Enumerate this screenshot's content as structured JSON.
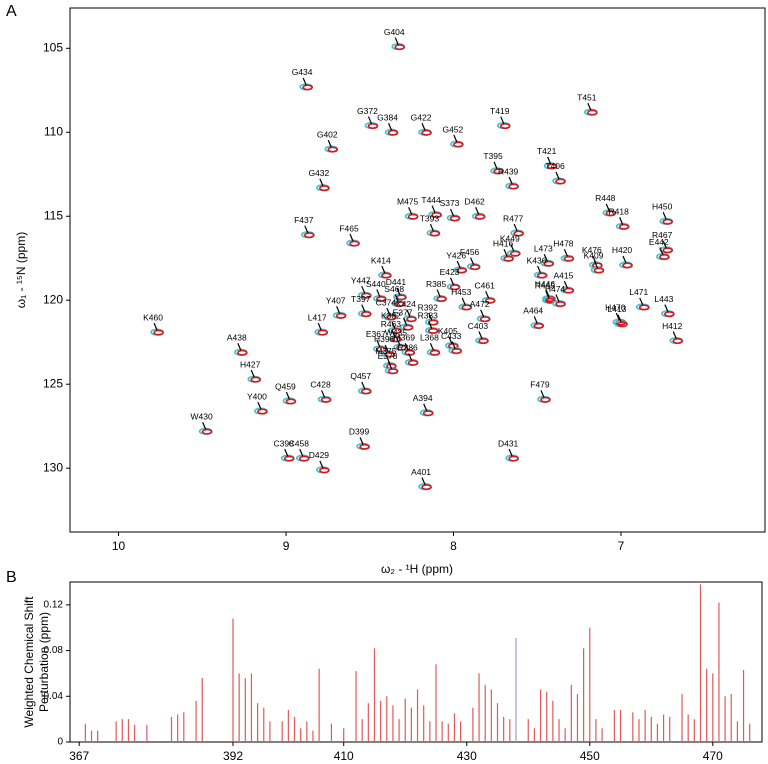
{
  "chart_data": [
    {
      "type": "scatter",
      "panel": "A",
      "xlabel": "ω₂ - ¹H  (ppm)",
      "ylabel": "ω₁ - ¹⁵N  (ppm)",
      "xlim": [
        10.29,
        6.14
      ],
      "ylim": [
        133.8,
        102.6
      ],
      "xticks": [
        10,
        9,
        8,
        7
      ],
      "yticks": [
        105,
        110,
        115,
        120,
        125,
        130
      ],
      "colors": [
        "#3fc0d0",
        "#d8161b"
      ],
      "labels": [
        "G404",
        "G434",
        "G372",
        "G384",
        "G422",
        "G452",
        "T419",
        "T451",
        "G402",
        "T395",
        "T421",
        "R439",
        "T406",
        "G432",
        "M475",
        "T444",
        "S373",
        "D462",
        "R448",
        "R418",
        "H450",
        "F437",
        "F465",
        "T393",
        "R477",
        "K449",
        "L473",
        "H478",
        "R467",
        "F456",
        "H416",
        "K414",
        "Y426",
        "H420",
        "E442",
        "K476",
        "K409",
        "K436",
        "Y447",
        "S440",
        "D441",
        "S468",
        "E423",
        "C461",
        "H453",
        "R385",
        "H446",
        "A415",
        "R445",
        "H474",
        "Y407",
        "T397",
        "C374",
        "K424",
        "E377",
        "K382",
        "R392",
        "R383",
        "A472",
        "H470",
        "L471",
        "L443",
        "L417",
        "R463",
        "W435",
        "L413",
        "H412",
        "A464",
        "C403",
        "K460",
        "A438",
        "E367",
        "H396",
        "M369",
        "K405",
        "L368",
        "R386",
        "C433",
        "M375",
        "E378",
        "H427",
        "C428",
        "Q457",
        "F479",
        "Y400",
        "Q459",
        "A394",
        "W430",
        "D399",
        "C398",
        "C458",
        "D429",
        "D431",
        "A401"
      ],
      "x": [
        8.33,
        8.88,
        8.49,
        8.37,
        8.17,
        7.98,
        7.7,
        7.18,
        8.73,
        7.74,
        7.42,
        7.65,
        7.37,
        8.78,
        8.25,
        8.11,
        8.0,
        7.85,
        7.07,
        6.99,
        6.73,
        8.87,
        8.6,
        8.12,
        7.62,
        7.64,
        7.44,
        7.32,
        6.73,
        7.88,
        7.68,
        8.41,
        7.96,
        6.97,
        6.75,
        7.15,
        7.14,
        7.48,
        8.53,
        8.44,
        8.32,
        8.33,
        8.0,
        7.79,
        7.93,
        8.08,
        7.43,
        7.32,
        7.43,
        7.37,
        8.68,
        8.53,
        8.38,
        8.26,
        8.28,
        8.35,
        8.13,
        8.13,
        7.82,
        7.01,
        6.87,
        6.72,
        8.79,
        8.35,
        8.32,
        7.0,
        6.67,
        7.5,
        7.83,
        9.77,
        9.27,
        8.44,
        8.39,
        8.27,
        8.01,
        8.12,
        8.25,
        7.99,
        8.38,
        8.37,
        9.19,
        8.77,
        8.53,
        7.46,
        9.15,
        8.98,
        8.16,
        9.48,
        8.54,
        8.99,
        8.9,
        8.78,
        7.65,
        8.17
      ],
      "y": [
        104.9,
        107.3,
        109.6,
        110.0,
        110.0,
        110.7,
        109.6,
        108.8,
        111.0,
        112.3,
        112.0,
        113.2,
        112.9,
        113.3,
        115.0,
        114.9,
        115.1,
        115.0,
        114.8,
        115.6,
        115.3,
        116.1,
        116.6,
        116.0,
        116.0,
        117.2,
        117.8,
        117.5,
        117.0,
        118.0,
        117.5,
        118.5,
        118.2,
        117.9,
        117.4,
        117.9,
        118.2,
        118.5,
        119.7,
        119.9,
        119.8,
        120.2,
        119.2,
        120.0,
        120.4,
        119.9,
        119.9,
        119.4,
        120.0,
        120.2,
        120.9,
        120.8,
        121.0,
        121.1,
        121.6,
        121.8,
        121.3,
        121.8,
        121.1,
        121.3,
        120.4,
        120.8,
        121.9,
        122.3,
        122.8,
        121.4,
        122.4,
        121.5,
        122.4,
        121.9,
        123.1,
        122.9,
        123.2,
        123.1,
        122.7,
        123.1,
        123.7,
        123.0,
        123.9,
        124.2,
        124.7,
        125.9,
        125.4,
        125.9,
        126.6,
        126.0,
        126.7,
        127.8,
        128.7,
        129.4,
        129.4,
        130.1,
        129.4,
        131.1
      ]
    },
    {
      "type": "bar",
      "panel": "B",
      "ylabel": [
        "Weighted Chemical Shift",
        "Perturbation (ppm)"
      ],
      "xlim": [
        365.5,
        478
      ],
      "ylim": [
        0,
        0.14
      ],
      "xticks": [
        367,
        392,
        410,
        430,
        450,
        470
      ],
      "yticks": [
        0,
        0.04,
        0.08,
        0.12
      ],
      "series": [
        {
          "color": "#e05a5a",
          "x": [
            368,
            369,
            370,
            373,
            374,
            375,
            376,
            378,
            382,
            383,
            384,
            386,
            387,
            392,
            393,
            394,
            395,
            396,
            397,
            398,
            400,
            401,
            402,
            403,
            404,
            405,
            406,
            408,
            410,
            412,
            413,
            414,
            415,
            416,
            417,
            418,
            419,
            420,
            421,
            422,
            423,
            424,
            425,
            426,
            427,
            428,
            429,
            431,
            432,
            433,
            434,
            435,
            436,
            437,
            440,
            441,
            442,
            443,
            444,
            445,
            446,
            447,
            448,
            449,
            450,
            451,
            452,
            454,
            455,
            457,
            458,
            459,
            460,
            461,
            462,
            463,
            465,
            466,
            467,
            468,
            469,
            470,
            471,
            472,
            473,
            474,
            475,
            476
          ],
          "values": [
            0.016,
            0.01,
            0.01,
            0.018,
            0.02,
            0.02,
            0.015,
            0.015,
            0.022,
            0.024,
            0.026,
            0.036,
            0.056,
            0.108,
            0.06,
            0.056,
            0.06,
            0.034,
            0.03,
            0.018,
            0.018,
            0.028,
            0.022,
            0.012,
            0.018,
            0.01,
            0.064,
            0.016,
            0.012,
            0.062,
            0.02,
            0.034,
            0.082,
            0.036,
            0.04,
            0.032,
            0.02,
            0.038,
            0.03,
            0.046,
            0.032,
            0.018,
            0.068,
            0.018,
            0.016,
            0.025,
            0.018,
            0.03,
            0.06,
            0.05,
            0.046,
            0.034,
            0.022,
            0.02,
            0.02,
            0.012,
            0.046,
            0.044,
            0.036,
            0.02,
            0.012,
            0.05,
            0.042,
            0.082,
            0.1,
            0.02,
            0.012,
            0.028,
            0.028,
            0.026,
            0.02,
            0.028,
            0.022,
            0.016,
            0.024,
            0.022,
            0.042,
            0.024,
            0.02,
            0.138,
            0.064,
            0.06,
            0.122,
            0.04,
            0.042,
            0.018,
            0.063,
            0.016
          ]
        },
        {
          "color": "#8fa3cc",
          "x": [
            438
          ],
          "values": [
            0.091
          ]
        }
      ]
    }
  ]
}
